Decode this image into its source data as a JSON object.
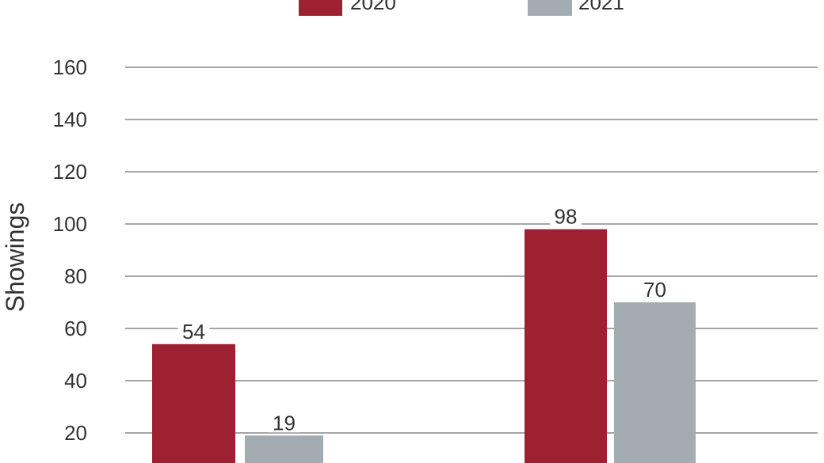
{
  "chart_data": {
    "type": "bar",
    "categories": [
      "",
      ""
    ],
    "series": [
      {
        "name": "2020",
        "color": "#9e2132",
        "values": [
          54,
          98
        ]
      },
      {
        "name": "2021",
        "color": "#a3acb1",
        "values": [
          19,
          70
        ]
      }
    ],
    "data_labels": [
      [
        "54",
        "98"
      ],
      [
        "19",
        "70"
      ]
    ],
    "ylabel": "Showings",
    "ylim": [
      0,
      160
    ],
    "yticks": [
      20,
      40,
      60,
      80,
      100,
      120,
      140,
      160
    ],
    "grid": true,
    "legend_position": "top-center"
  }
}
